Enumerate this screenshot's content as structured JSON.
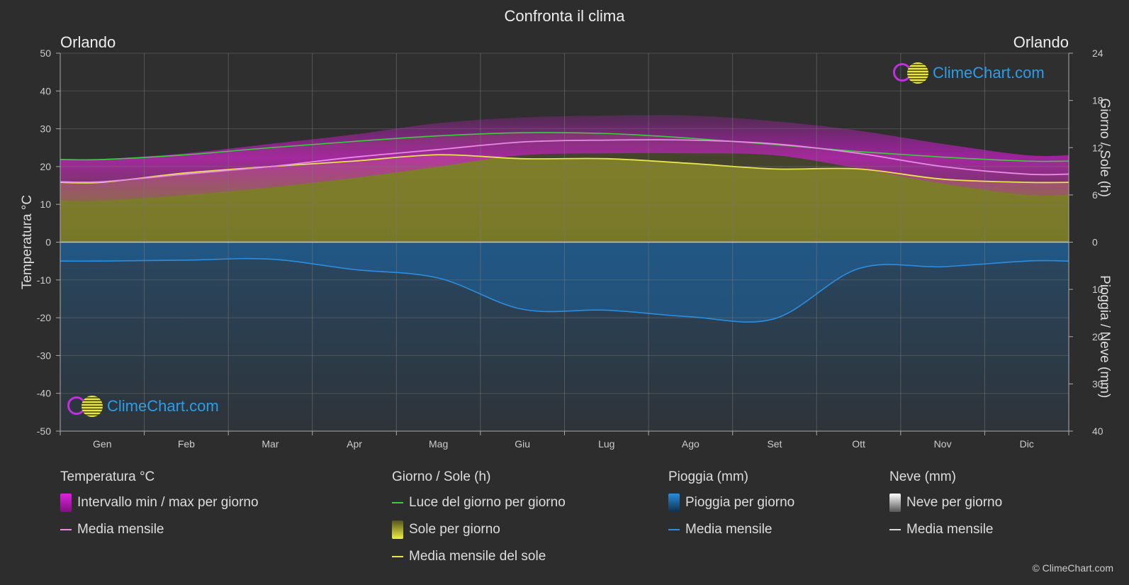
{
  "title": "Confronta il clima",
  "city_left": "Orlando",
  "city_right": "Orlando",
  "watermark": "ClimeChart.com",
  "copyright": "© ClimeChart.com",
  "chart_data": {
    "type": "area",
    "months": [
      "Gen",
      "Feb",
      "Mar",
      "Apr",
      "Mag",
      "Giu",
      "Lug",
      "Ago",
      "Set",
      "Ott",
      "Nov",
      "Dic"
    ],
    "y_left": {
      "label": "Temperatura °C",
      "range": [
        -50,
        50
      ],
      "ticks": [
        50,
        40,
        30,
        20,
        10,
        0,
        -10,
        -20,
        -30,
        -40,
        -50
      ]
    },
    "y_right_top": {
      "label": "Giorno / Sole (h)",
      "range": [
        0,
        24
      ],
      "ticks": [
        24,
        18,
        12,
        6,
        0
      ]
    },
    "y_right_bottom": {
      "label": "Pioggia / Neve (mm)",
      "range": [
        0,
        40
      ],
      "ticks": [
        0,
        10,
        20,
        30,
        40
      ]
    },
    "series": [
      {
        "name": "Media mensile",
        "group": "temperature",
        "unit": "°C",
        "color": "#e68ae6",
        "values": [
          16.0,
          18.0,
          20.0,
          22.5,
          24.5,
          26.5,
          27.0,
          27.0,
          26.0,
          23.5,
          20.0,
          18.0
        ]
      },
      {
        "name": "Intervallo min / max per giorno",
        "group": "temperature",
        "unit": "°C",
        "color": "#d020d0",
        "min": [
          11.0,
          12.5,
          14.5,
          17.0,
          20.0,
          23.0,
          23.5,
          23.5,
          23.0,
          19.5,
          15.5,
          12.5
        ],
        "max": [
          22.0,
          23.5,
          26.0,
          28.5,
          31.5,
          33.0,
          33.5,
          33.5,
          32.0,
          29.5,
          26.0,
          23.0
        ]
      },
      {
        "name": "Luce del giorno per giorno",
        "group": "daylight",
        "unit": "h",
        "color": "#3ccf3c",
        "values": [
          10.5,
          11.1,
          12.0,
          12.8,
          13.5,
          13.9,
          13.8,
          13.2,
          12.4,
          11.5,
          10.8,
          10.3
        ]
      },
      {
        "name": "Media mensile del sole",
        "group": "sun",
        "unit": "h",
        "color": "#e6e64a",
        "values": [
          7.6,
          8.8,
          9.6,
          10.3,
          11.1,
          10.6,
          10.6,
          10.0,
          9.3,
          9.3,
          8.0,
          7.6
        ]
      },
      {
        "name": "Media mensile",
        "group": "rain",
        "unit": "mm",
        "color": "#2a8de0",
        "values": [
          4.0,
          3.8,
          3.6,
          5.8,
          7.6,
          14.2,
          14.4,
          15.8,
          16.2,
          5.6,
          5.2,
          4.0
        ]
      }
    ]
  },
  "legend": {
    "temperature": {
      "title": "Temperatura °C",
      "items": [
        "Intervallo min / max per giorno",
        "Media mensile"
      ]
    },
    "sun": {
      "title": "Giorno / Sole (h)",
      "items": [
        "Luce del giorno per giorno",
        "Sole per giorno",
        "Media mensile del sole"
      ]
    },
    "rain": {
      "title": "Pioggia (mm)",
      "items": [
        "Pioggia per giorno",
        "Media mensile"
      ]
    },
    "snow": {
      "title": "Neve (mm)",
      "items": [
        "Neve per giorno",
        "Media mensile"
      ]
    }
  },
  "colors": {
    "background": "#2d2d2d",
    "temp_range": "#c81ec8",
    "temp_mean": "#e68ae6",
    "daylight": "#3ccf3c",
    "sun_fill": "#9a9a2e",
    "sun_mean": "#e6e64a",
    "rain": "#2a8de0",
    "snow": "#dddddd",
    "watermark": "#2a9de8"
  }
}
